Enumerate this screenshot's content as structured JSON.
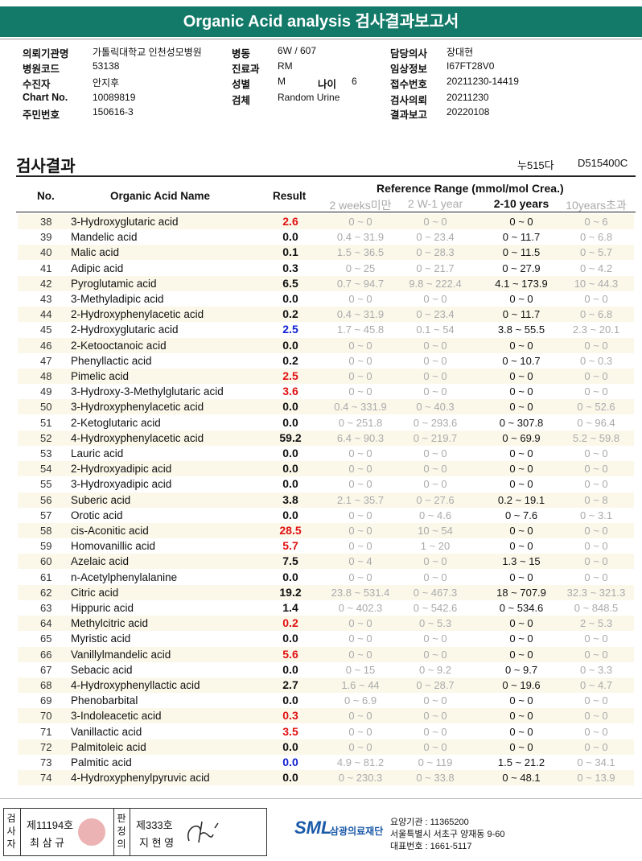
{
  "header": {
    "title": "Organic Acid analysis 검사결과보고서"
  },
  "info": {
    "columns": [
      [
        {
          "label": "의뢰기관명",
          "value": "가톨릭대학교 인천성모병원"
        },
        {
          "label": "병원코드",
          "value": "53138"
        },
        {
          "label": "수진자",
          "value": "안지후"
        },
        {
          "label": "Chart No.",
          "value": "10089819"
        },
        {
          "label": "주민번호",
          "value": "150616-3"
        }
      ],
      [
        {
          "label": "병동",
          "value": "6W / 607"
        },
        {
          "label": "진료과",
          "value": "RM"
        },
        {
          "label": "성별",
          "value": "M",
          "extra_label": "나이",
          "extra_value": "6"
        },
        {
          "label": "검체",
          "value": "Random Urine"
        }
      ],
      [
        {
          "label": "담당의사",
          "value": "장대현"
        },
        {
          "label": "임상정보",
          "value": "I67FT28V0"
        },
        {
          "label": "접수번호",
          "value": "20211230-14419"
        },
        {
          "label": "검사의뢰",
          "value": "20211230"
        },
        {
          "label": "결과보고",
          "value": "20220108"
        }
      ]
    ]
  },
  "section": {
    "title": "검사결과",
    "code1": "누515다",
    "code2": "D515400C"
  },
  "table": {
    "headers": {
      "no": "No.",
      "name": "Organic Acid Name",
      "result": "Result",
      "reference": "Reference Range (mmol/mol Crea.)",
      "ranges": [
        "2 weeks미만",
        "2 W-1 year",
        "2-10 years",
        "10years초과"
      ]
    },
    "highlight_column": 2,
    "rows": [
      {
        "no": "38",
        "name": "3-Hydroxyglutaric acid",
        "result": "2.6",
        "color": "#e01010",
        "ranges": [
          "0 ~ 0",
          "0 ~ 0",
          "0 ~ 0",
          "0 ~ 6"
        ]
      },
      {
        "no": "39",
        "name": "Mandelic acid",
        "result": "0.0",
        "ranges": [
          "0.4 ~ 31.9",
          "0 ~ 23.4",
          "0 ~ 11.7",
          "0 ~ 6.8"
        ]
      },
      {
        "no": "40",
        "name": "Malic acid",
        "result": "0.1",
        "ranges": [
          "1.5 ~ 36.5",
          "0 ~ 28.3",
          "0 ~ 11.5",
          "0 ~ 5.7"
        ]
      },
      {
        "no": "41",
        "name": "Adipic acid",
        "result": "0.3",
        "ranges": [
          "0 ~ 25",
          "0 ~ 21.7",
          "0 ~ 27.9",
          "0 ~ 4.2"
        ]
      },
      {
        "no": "42",
        "name": "Pyroglutamic acid",
        "result": "6.5",
        "ranges": [
          "0.7 ~ 94.7",
          "9.8 ~ 222.4",
          "4.1 ~ 173.9",
          "10 ~ 44.3"
        ]
      },
      {
        "no": "43",
        "name": "3-Methyladipic acid",
        "result": "0.0",
        "ranges": [
          "0 ~ 0",
          "0 ~ 0",
          "0 ~ 0",
          "0 ~ 0"
        ]
      },
      {
        "no": "44",
        "name": "2-Hydroxyphenylacetic acid",
        "result": "0.2",
        "ranges": [
          "0.4 ~ 31.9",
          "0 ~ 23.4",
          "0 ~ 11.7",
          "0 ~ 6.8"
        ]
      },
      {
        "no": "45",
        "name": "2-Hydroxyglutaric acid",
        "result": "2.5",
        "color": "#1020d0",
        "ranges": [
          "1.7 ~ 45.8",
          "0.1 ~ 54",
          "3.8 ~ 55.5",
          "2.3 ~ 20.1"
        ]
      },
      {
        "no": "46",
        "name": "2-Ketooctanoic acid",
        "result": "0.0",
        "ranges": [
          "0 ~ 0",
          "0 ~ 0",
          "0 ~ 0",
          "0 ~ 0"
        ]
      },
      {
        "no": "47",
        "name": "Phenyllactic acid",
        "result": "0.2",
        "ranges": [
          "0 ~ 0",
          "0 ~ 0",
          "0 ~ 10.7",
          "0 ~ 0.3"
        ]
      },
      {
        "no": "48",
        "name": "Pimelic acid",
        "result": "2.5",
        "color": "#e01010",
        "ranges": [
          "0 ~ 0",
          "0 ~ 0",
          "0 ~ 0",
          "0 ~ 0"
        ]
      },
      {
        "no": "49",
        "name": "3-Hydroxy-3-Methylglutaric acid",
        "result": "3.6",
        "color": "#e01010",
        "ranges": [
          "0 ~ 0",
          "0 ~ 0",
          "0 ~ 0",
          "0 ~ 0"
        ]
      },
      {
        "no": "50",
        "name": "3-Hydroxyphenylacetic acid",
        "result": "0.0",
        "ranges": [
          "0.4 ~ 331.9",
          "0 ~ 40.3",
          "0 ~ 0",
          "0 ~ 52.6"
        ]
      },
      {
        "no": "51",
        "name": "2-Ketoglutaric acid",
        "result": "0.0",
        "ranges": [
          "0 ~ 251.8",
          "0 ~ 293.6",
          "0 ~ 307.8",
          "0 ~ 96.4"
        ]
      },
      {
        "no": "52",
        "name": "4-Hydroxyphenylacetic acid",
        "result": "59.2",
        "ranges": [
          "6.4 ~ 90.3",
          "0 ~ 219.7",
          "0 ~ 69.9",
          "5.2 ~ 59.8"
        ]
      },
      {
        "no": "53",
        "name": "Lauric acid",
        "result": "0.0",
        "ranges": [
          "0 ~ 0",
          "0 ~ 0",
          "0 ~ 0",
          "0 ~ 0"
        ]
      },
      {
        "no": "54",
        "name": "2-Hydroxyadipic acid",
        "result": "0.0",
        "ranges": [
          "0 ~ 0",
          "0 ~ 0",
          "0 ~ 0",
          "0 ~ 0"
        ]
      },
      {
        "no": "55",
        "name": "3-Hydroxyadipic acid",
        "result": "0.0",
        "ranges": [
          "0 ~ 0",
          "0 ~ 0",
          "0 ~ 0",
          "0 ~ 0"
        ]
      },
      {
        "no": "56",
        "name": "Suberic acid",
        "result": "3.8",
        "ranges": [
          "2.1 ~ 35.7",
          "0 ~ 27.6",
          "0.2 ~ 19.1",
          "0 ~ 8"
        ]
      },
      {
        "no": "57",
        "name": "Orotic acid",
        "result": "0.0",
        "ranges": [
          "0 ~ 0",
          "0 ~ 4.6",
          "0 ~ 7.6",
          "0 ~ 3.1"
        ]
      },
      {
        "no": "58",
        "name": "cis-Aconitic acid",
        "result": "28.5",
        "color": "#e01010",
        "ranges": [
          "0 ~ 0",
          "10 ~ 54",
          "0 ~ 0",
          "0 ~ 0"
        ]
      },
      {
        "no": "59",
        "name": "Homovanillic acid",
        "result": "5.7",
        "color": "#e01010",
        "ranges": [
          "0 ~ 0",
          "1 ~ 20",
          "0 ~ 0",
          "0 ~ 0"
        ]
      },
      {
        "no": "60",
        "name": "Azelaic acid",
        "result": "7.5",
        "ranges": [
          "0 ~ 4",
          "0 ~ 0",
          "1.3 ~ 15",
          "0 ~ 0"
        ]
      },
      {
        "no": "61",
        "name": "n-Acetylphenylalanine",
        "result": "0.0",
        "ranges": [
          "0 ~ 0",
          "0 ~ 0",
          "0 ~ 0",
          "0 ~ 0"
        ]
      },
      {
        "no": "62",
        "name": "Citric acid",
        "result": "19.2",
        "ranges": [
          "23.8 ~ 531.4",
          "0 ~ 467.3",
          "18 ~ 707.9",
          "32.3 ~ 321.3"
        ]
      },
      {
        "no": "63",
        "name": "Hippuric acid",
        "result": "1.4",
        "ranges": [
          "0 ~ 402.3",
          "0 ~ 542.6",
          "0 ~ 534.6",
          "0 ~ 848.5"
        ]
      },
      {
        "no": "64",
        "name": "Methylcitric acid",
        "result": "0.2",
        "color": "#e01010",
        "ranges": [
          "0 ~ 0",
          "0 ~ 5.3",
          "0 ~ 0",
          "2 ~ 5.3"
        ]
      },
      {
        "no": "65",
        "name": "Myristic acid",
        "result": "0.0",
        "ranges": [
          "0 ~ 0",
          "0 ~ 0",
          "0 ~ 0",
          "0 ~ 0"
        ]
      },
      {
        "no": "66",
        "name": "Vanillylmandelic acid",
        "result": "5.6",
        "color": "#e01010",
        "ranges": [
          "0 ~ 0",
          "0 ~ 0",
          "0 ~ 0",
          "0 ~ 0"
        ]
      },
      {
        "no": "67",
        "name": "Sebacic acid",
        "result": "0.0",
        "ranges": [
          "0 ~ 15",
          "0 ~ 9.2",
          "0 ~ 9.7",
          "0 ~ 3.3"
        ]
      },
      {
        "no": "68",
        "name": "4-Hydroxyphenyllactic acid",
        "result": "2.7",
        "ranges": [
          "1.6 ~ 44",
          "0 ~ 28.7",
          "0 ~ 19.6",
          "0 ~ 4.7"
        ]
      },
      {
        "no": "69",
        "name": "Phenobarbital",
        "result": "0.0",
        "ranges": [
          "0 ~ 6.9",
          "0 ~ 0",
          "0 ~ 0",
          "0 ~ 0"
        ]
      },
      {
        "no": "70",
        "name": "3-Indoleacetic acid",
        "result": "0.3",
        "color": "#e01010",
        "ranges": [
          "0 ~ 0",
          "0 ~ 0",
          "0 ~ 0",
          "0 ~ 0"
        ]
      },
      {
        "no": "71",
        "name": "Vanillactic acid",
        "result": "3.5",
        "color": "#e01010",
        "ranges": [
          "0 ~ 0",
          "0 ~ 0",
          "0 ~ 0",
          "0 ~ 0"
        ]
      },
      {
        "no": "72",
        "name": "Palmitoleic acid",
        "result": "0.0",
        "ranges": [
          "0 ~ 0",
          "0 ~ 0",
          "0 ~ 0",
          "0 ~ 0"
        ]
      },
      {
        "no": "73",
        "name": "Palmitic acid",
        "result": "0.0",
        "color": "#1020d0",
        "ranges": [
          "4.9 ~ 81.2",
          "0 ~ 119",
          "1.5 ~ 21.2",
          "0 ~ 34.1"
        ]
      },
      {
        "no": "74",
        "name": "4-Hydroxyphenylpyruvic acid",
        "result": "0.0",
        "ranges": [
          "0 ~ 230.3",
          "0 ~ 33.8",
          "0 ~ 48.1",
          "0 ~ 13.9"
        ]
      }
    ]
  },
  "footer": {
    "examiner": {
      "role": "검사자",
      "number": "제11194호",
      "name": "최 삼 규"
    },
    "judge": {
      "role": "판정의",
      "number": "제333호",
      "name": "지 현 영"
    },
    "lab": {
      "logo": "SML",
      "name": "삼광의료재단",
      "code": "요양기관 : 11365200",
      "address": "서울특별시 서초구 양재동 9-60",
      "phone": "대표번호 : 1661-5117"
    }
  }
}
